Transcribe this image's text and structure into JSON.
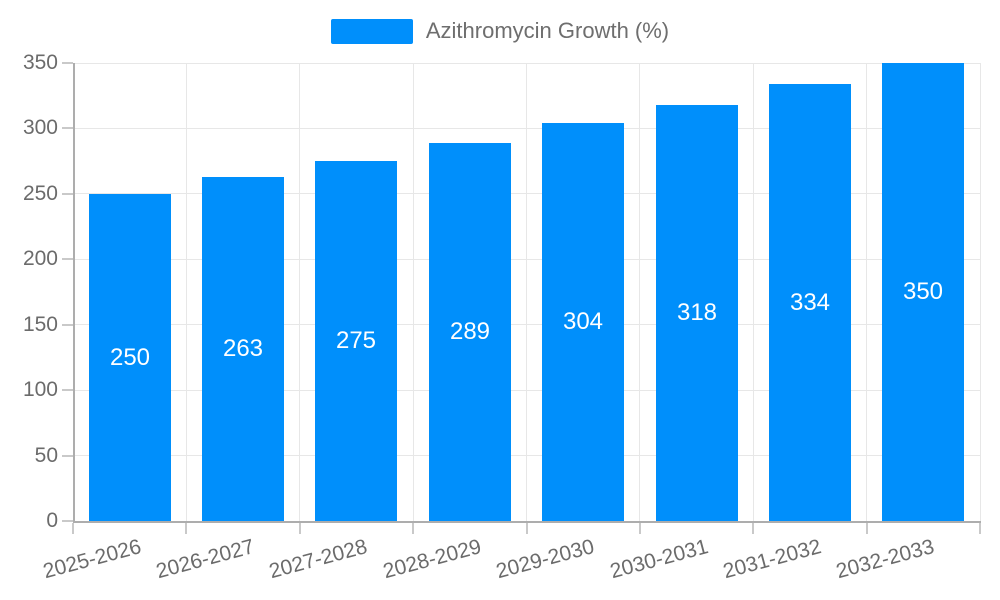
{
  "chart_data": {
    "type": "bar",
    "title": "",
    "legend": {
      "label": "Azithromycin Growth (%)",
      "position": "top"
    },
    "categories": [
      "2025-2026",
      "2026-2027",
      "2027-2028",
      "2028-2029",
      "2029-2030",
      "2030-2031",
      "2031-2032",
      "2032-2033"
    ],
    "series": [
      {
        "name": "Azithromycin Growth (%)",
        "values": [
          250,
          263,
          275,
          289,
          304,
          318,
          334,
          350
        ]
      }
    ],
    "data_labels": [
      250,
      263,
      275,
      289,
      304,
      318,
      334,
      350
    ],
    "data_label_position": "inside-center",
    "xlabel": "",
    "ylabel": "",
    "ylim": [
      0,
      350
    ],
    "yticks": [
      0,
      50,
      100,
      150,
      200,
      250,
      300,
      350
    ],
    "grid": "horizontal-and-vertical",
    "x_label_rotation_deg": -15
  },
  "colors": {
    "bar": "#008FFB",
    "legend_text": "#6E6E6E",
    "axis_label_text": "#6B6B6B",
    "data_label_text": "#FFFFFF",
    "gridline": "#E7E7E7",
    "axis_line": "#ADADAD",
    "tick": "#C9C9C9",
    "background": "#FFFFFF"
  }
}
